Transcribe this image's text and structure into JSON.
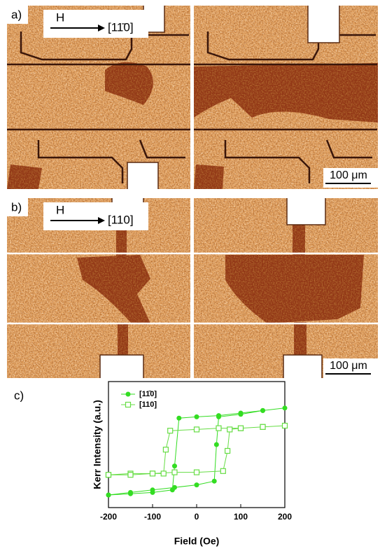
{
  "panels": [
    {
      "label": "a)",
      "field": "H",
      "direction": "[11̄0]",
      "scale_bar": "100 μm"
    },
    {
      "label": "b)",
      "field": "H",
      "direction": "[110]",
      "scale_bar": "100 μm"
    }
  ],
  "chart_data": {
    "type": "line",
    "label": "c)",
    "x_label": "Field (Oe)",
    "y_label": "Kerr Intensity (a.u.)",
    "xlim": [
      -200,
      200
    ],
    "xticks": [
      -200,
      -100,
      0,
      100,
      200
    ],
    "ylim": [
      0,
      1
    ],
    "legend": "upper left",
    "series": [
      {
        "name": "[11̄0]",
        "color": "#33dd22",
        "marker": "filled-circle",
        "x": [
          -200,
          -150,
          -100,
          -50,
          0,
          40,
          45,
          50,
          100,
          150,
          200,
          150,
          100,
          50,
          0,
          -40,
          -50,
          -55,
          -100,
          -150,
          -200
        ],
        "values": [
          0.1,
          0.12,
          0.14,
          0.16,
          0.18,
          0.21,
          0.5,
          0.72,
          0.74,
          0.77,
          0.79,
          0.77,
          0.75,
          0.73,
          0.72,
          0.71,
          0.33,
          0.14,
          0.12,
          0.11,
          0.1
        ]
      },
      {
        "name": "[110]",
        "color": "#66dd44",
        "marker": "open-square",
        "x": [
          -200,
          -150,
          -100,
          -50,
          0,
          60,
          70,
          75,
          100,
          150,
          200,
          150,
          100,
          50,
          0,
          -60,
          -70,
          -75,
          -100,
          -150,
          -200
        ],
        "values": [
          0.26,
          0.27,
          0.27,
          0.28,
          0.28,
          0.29,
          0.45,
          0.62,
          0.63,
          0.64,
          0.65,
          0.64,
          0.63,
          0.63,
          0.62,
          0.61,
          0.46,
          0.27,
          0.27,
          0.26,
          0.26
        ]
      }
    ]
  }
}
